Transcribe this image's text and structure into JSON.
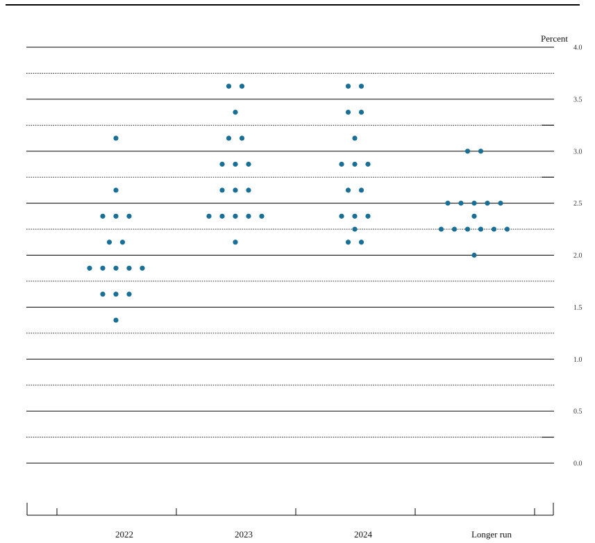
{
  "chart_data": {
    "type": "scatter",
    "subtype": "dot-plot",
    "unit_label": "Percent",
    "ylim": [
      0,
      4
    ],
    "y_ticks": [
      "0.0",
      "0.5",
      "1.0",
      "1.5",
      "2.0",
      "2.5",
      "3.0",
      "3.5",
      "4.0"
    ],
    "grid": "solid lines at whole and half percents, dotted lines at quarter percents",
    "categories": [
      "2022",
      "2023",
      "2024",
      "Longer run"
    ],
    "dot_color": "#1a6f96",
    "series": [
      {
        "category": "2022",
        "points": [
          {
            "y": 3.125,
            "count": 1
          },
          {
            "y": 2.625,
            "count": 1
          },
          {
            "y": 2.375,
            "count": 3
          },
          {
            "y": 2.125,
            "count": 2
          },
          {
            "y": 1.875,
            "count": 5
          },
          {
            "y": 1.625,
            "count": 3
          },
          {
            "y": 1.375,
            "count": 1
          }
        ]
      },
      {
        "category": "2023",
        "points": [
          {
            "y": 3.625,
            "count": 2
          },
          {
            "y": 3.375,
            "count": 1
          },
          {
            "y": 3.125,
            "count": 2
          },
          {
            "y": 2.875,
            "count": 3
          },
          {
            "y": 2.625,
            "count": 3
          },
          {
            "y": 2.375,
            "count": 5
          },
          {
            "y": 2.125,
            "count": 1
          }
        ]
      },
      {
        "category": "2024",
        "points": [
          {
            "y": 3.625,
            "count": 2
          },
          {
            "y": 3.375,
            "count": 2
          },
          {
            "y": 3.125,
            "count": 1
          },
          {
            "y": 2.875,
            "count": 3
          },
          {
            "y": 2.625,
            "count": 2
          },
          {
            "y": 2.375,
            "count": 3
          },
          {
            "y": 2.25,
            "count": 1
          },
          {
            "y": 2.125,
            "count": 2
          }
        ]
      },
      {
        "category": "Longer run",
        "points": [
          {
            "y": 3.0,
            "count": 2
          },
          {
            "y": 2.5,
            "count": 5
          },
          {
            "y": 2.375,
            "count": 1
          },
          {
            "y": 2.25,
            "count": 6
          },
          {
            "y": 2.0,
            "count": 1
          }
        ]
      }
    ]
  }
}
